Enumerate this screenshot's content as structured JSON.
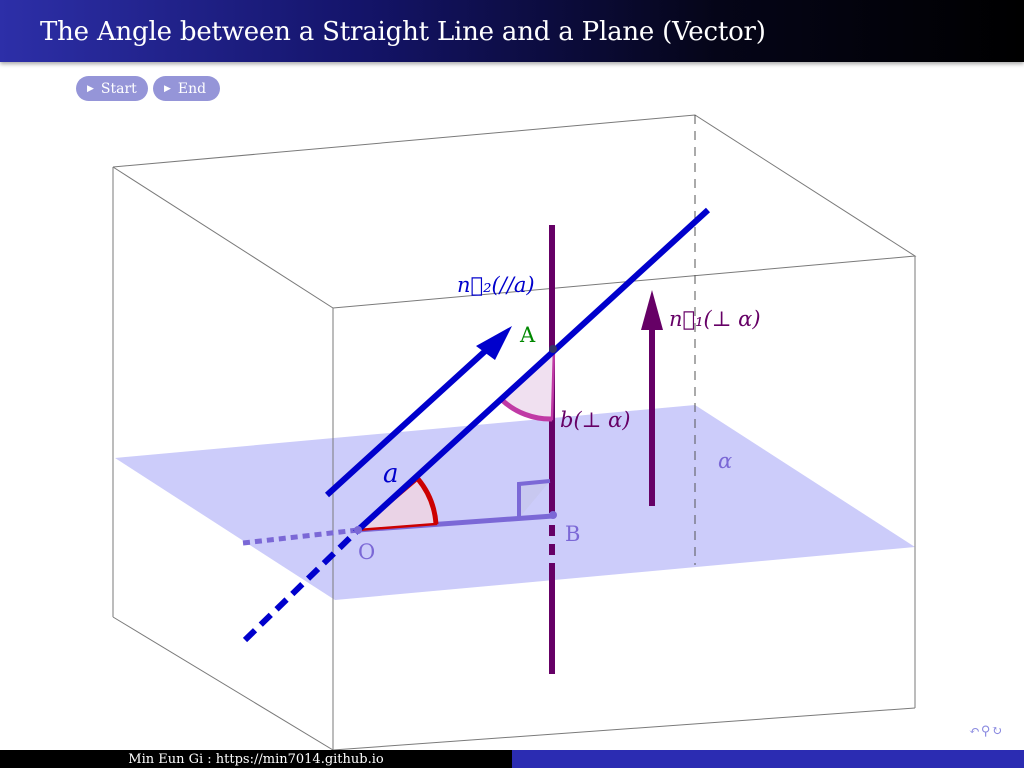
{
  "slide": {
    "title": "The Angle between a Straight Line and a Plane (Vector)"
  },
  "controls": {
    "start_label": "Start",
    "end_label": "End"
  },
  "figure": {
    "label_n2": "n⃗₂(//a)",
    "label_n1": "n⃗₁(⊥ α)",
    "label_A": "A",
    "label_B": "B",
    "label_O": "O",
    "label_a": "a",
    "label_b": "b(⊥ α)",
    "label_alpha": "α",
    "colors": {
      "line_a": "#0000cc",
      "line_b": "#660066",
      "plane": "#ccccfa",
      "projection": "#7b68d6",
      "angle_red": "#cc0000",
      "angle_magenta": "#c03aa5",
      "label_A": "#008800"
    }
  },
  "footer": {
    "author": "Min Eun Gi : https://min7014.github.io"
  },
  "nav": {
    "icons": "navigation-symbols-icon"
  }
}
